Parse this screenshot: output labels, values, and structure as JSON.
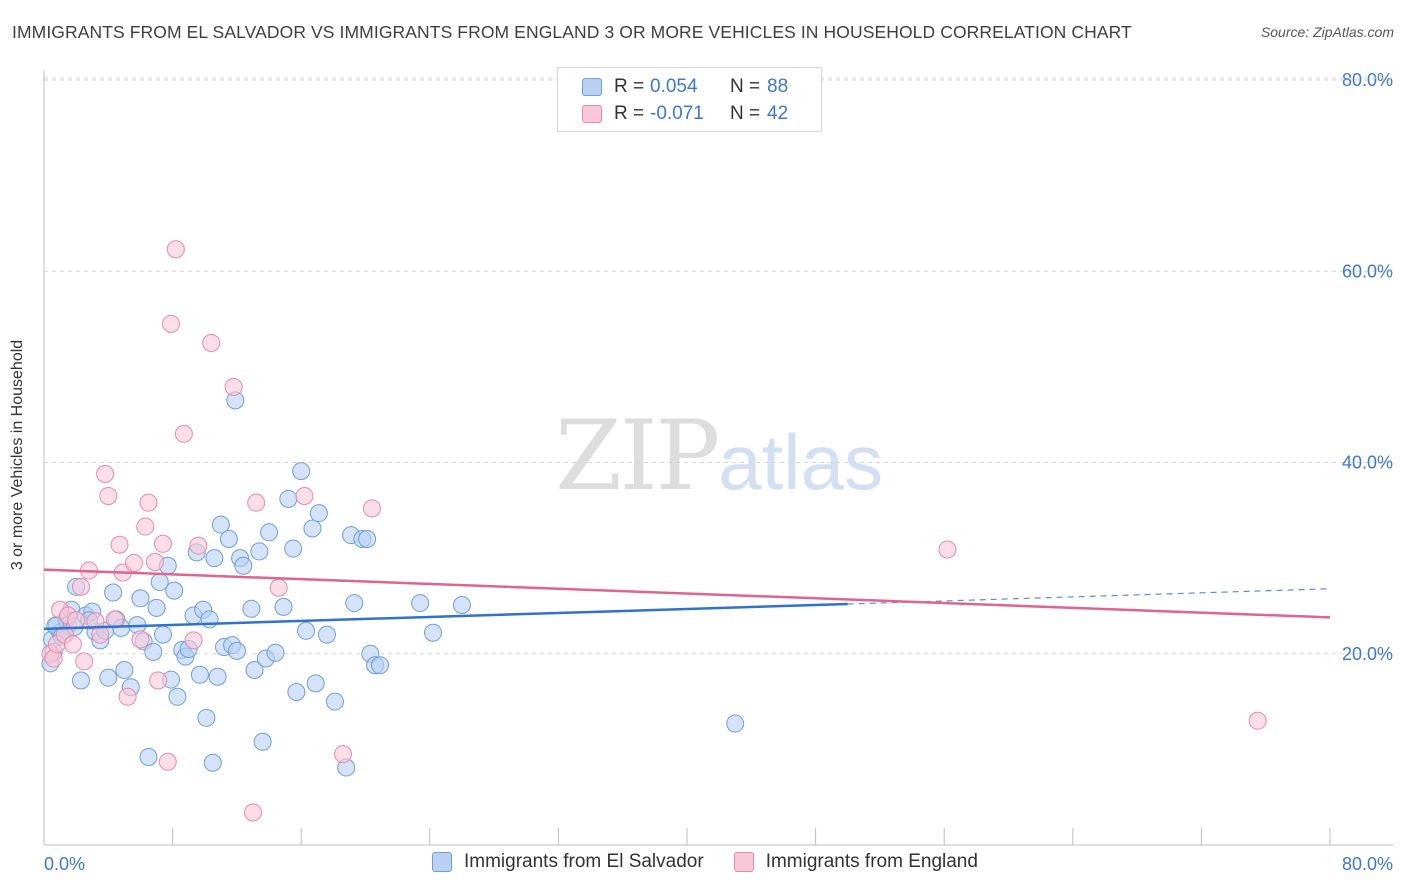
{
  "title": "IMMIGRANTS FROM EL SALVADOR VS IMMIGRANTS FROM ENGLAND 3 OR MORE VEHICLES IN HOUSEHOLD CORRELATION CHART",
  "source": "Source: ZipAtlas.com",
  "watermark": {
    "part1": "ZIP",
    "part2": "atlas"
  },
  "legend": {
    "r_label": "R =",
    "n_label": "N =",
    "series": [
      {
        "name": "Immigrants from El Salvador",
        "r": "0.054",
        "n": "88"
      },
      {
        "name": "Immigrants from England",
        "r": "-0.071",
        "n": "42"
      }
    ]
  },
  "colors": {
    "blue_fill": "#b8d1f2",
    "blue_stroke": "#6f9fd8",
    "blue_line": "#2f72d0",
    "pink_fill": "#f9c8d8",
    "pink_stroke": "#e88aaa",
    "pink_line": "#e0648f",
    "tick": "#3d78d6",
    "grid": "#d6d6d6"
  },
  "chart_data": {
    "type": "scatter",
    "title": "IMMIGRANTS FROM EL SALVADOR VS IMMIGRANTS FROM ENGLAND 3 OR MORE VEHICLES IN HOUSEHOLD CORRELATION CHART",
    "xlabel": "",
    "ylabel": "3 or more Vehicles in Household",
    "xlim": [
      0,
      80
    ],
    "ylim": [
      0,
      82
    ],
    "x_tick_labels": [
      "0.0%",
      "80.0%"
    ],
    "y_ticks": [
      20,
      40,
      60,
      80
    ],
    "y_tick_labels": [
      "20.0%",
      "40.0%",
      "60.0%",
      "80.0%"
    ],
    "series": [
      {
        "name": "Immigrants from El Salvador",
        "color": "blue",
        "points": [
          [
            0.4,
            19.0
          ],
          [
            0.5,
            21.5
          ],
          [
            0.6,
            20.2
          ],
          [
            0.8,
            23.0
          ],
          [
            1.0,
            22.2
          ],
          [
            1.2,
            22.0
          ],
          [
            1.4,
            23.6
          ],
          [
            1.5,
            23.0
          ],
          [
            1.7,
            24.6
          ],
          [
            1.9,
            22.8
          ],
          [
            2.0,
            27.0
          ],
          [
            2.3,
            17.2
          ],
          [
            2.6,
            24.0
          ],
          [
            3.0,
            24.4
          ],
          [
            3.2,
            22.3
          ],
          [
            3.5,
            21.4
          ],
          [
            3.8,
            22.4
          ],
          [
            4.0,
            17.5
          ],
          [
            4.3,
            26.4
          ],
          [
            4.5,
            23.6
          ],
          [
            4.8,
            22.7
          ],
          [
            5.0,
            18.3
          ],
          [
            5.4,
            16.5
          ],
          [
            5.8,
            23.0
          ],
          [
            6.0,
            25.8
          ],
          [
            6.2,
            21.3
          ],
          [
            6.5,
            9.2
          ],
          [
            6.8,
            20.2
          ],
          [
            7.0,
            24.8
          ],
          [
            7.2,
            27.5
          ],
          [
            7.4,
            22.0
          ],
          [
            7.7,
            29.2
          ],
          [
            7.9,
            17.3
          ],
          [
            8.1,
            26.6
          ],
          [
            8.3,
            15.5
          ],
          [
            8.6,
            20.4
          ],
          [
            8.8,
            19.7
          ],
          [
            9.0,
            20.5
          ],
          [
            9.3,
            24.0
          ],
          [
            9.5,
            30.6
          ],
          [
            9.7,
            17.8
          ],
          [
            9.9,
            24.6
          ],
          [
            10.1,
            13.3
          ],
          [
            10.3,
            23.6
          ],
          [
            10.5,
            8.6
          ],
          [
            10.6,
            30.0
          ],
          [
            10.8,
            17.6
          ],
          [
            11.0,
            33.5
          ],
          [
            11.2,
            20.7
          ],
          [
            11.5,
            32.0
          ],
          [
            11.7,
            20.9
          ],
          [
            11.9,
            46.5
          ],
          [
            12.0,
            20.3
          ],
          [
            12.2,
            30.0
          ],
          [
            12.4,
            29.2
          ],
          [
            12.9,
            24.7
          ],
          [
            13.1,
            18.3
          ],
          [
            13.4,
            30.7
          ],
          [
            13.6,
            10.8
          ],
          [
            13.8,
            19.5
          ],
          [
            14.0,
            32.7
          ],
          [
            14.4,
            20.1
          ],
          [
            14.9,
            24.9
          ],
          [
            15.2,
            36.2
          ],
          [
            15.5,
            31.0
          ],
          [
            15.7,
            16.0
          ],
          [
            16.0,
            39.1
          ],
          [
            16.3,
            22.4
          ],
          [
            16.7,
            33.1
          ],
          [
            16.9,
            16.9
          ],
          [
            17.1,
            34.7
          ],
          [
            17.6,
            22.0
          ],
          [
            18.1,
            15.0
          ],
          [
            18.8,
            8.1
          ],
          [
            19.1,
            32.4
          ],
          [
            19.3,
            25.3
          ],
          [
            19.8,
            32.0
          ],
          [
            20.1,
            32.0
          ],
          [
            20.3,
            20.0
          ],
          [
            20.6,
            18.8
          ],
          [
            20.9,
            18.8
          ],
          [
            23.4,
            25.3
          ],
          [
            24.2,
            22.2
          ],
          [
            26.0,
            25.1
          ],
          [
            43.0,
            12.7
          ],
          [
            0.7,
            22.9
          ],
          [
            1.1,
            21.8
          ],
          [
            2.8,
            23.5
          ]
        ]
      },
      {
        "name": "Immigrants from England",
        "color": "pink",
        "points": [
          [
            0.4,
            20.0
          ],
          [
            0.6,
            19.5
          ],
          [
            0.8,
            21.0
          ],
          [
            1.0,
            24.6
          ],
          [
            1.3,
            22.0
          ],
          [
            1.5,
            24.0
          ],
          [
            1.8,
            21.0
          ],
          [
            2.0,
            23.5
          ],
          [
            2.3,
            27.0
          ],
          [
            2.5,
            19.2
          ],
          [
            2.8,
            28.7
          ],
          [
            3.2,
            23.4
          ],
          [
            3.5,
            22.0
          ],
          [
            3.8,
            38.8
          ],
          [
            4.0,
            36.5
          ],
          [
            4.4,
            23.6
          ],
          [
            4.7,
            31.4
          ],
          [
            4.9,
            28.5
          ],
          [
            5.2,
            15.5
          ],
          [
            5.6,
            29.5
          ],
          [
            6.0,
            21.5
          ],
          [
            6.3,
            33.3
          ],
          [
            6.5,
            35.8
          ],
          [
            6.9,
            29.6
          ],
          [
            7.1,
            17.2
          ],
          [
            7.4,
            31.5
          ],
          [
            7.7,
            8.7
          ],
          [
            7.9,
            54.5
          ],
          [
            8.2,
            62.3
          ],
          [
            8.7,
            43.0
          ],
          [
            9.3,
            21.4
          ],
          [
            9.6,
            31.3
          ],
          [
            10.4,
            52.5
          ],
          [
            11.8,
            47.9
          ],
          [
            13.0,
            3.4
          ],
          [
            13.2,
            35.8
          ],
          [
            14.6,
            26.9
          ],
          [
            16.2,
            36.5
          ],
          [
            18.6,
            9.5
          ],
          [
            20.4,
            35.2
          ],
          [
            56.2,
            30.9
          ],
          [
            75.5,
            13.0
          ]
        ]
      }
    ],
    "trend_lines": [
      {
        "series": "Immigrants from El Salvador",
        "x0": 0,
        "y0": 22.6,
        "x1": 50,
        "y1": 25.2,
        "dashed_to_x": 80,
        "dashed_to_y": 26.8
      },
      {
        "series": "Immigrants from England",
        "x0": 0,
        "y0": 28.8,
        "x1": 80,
        "y1": 23.8
      }
    ]
  }
}
